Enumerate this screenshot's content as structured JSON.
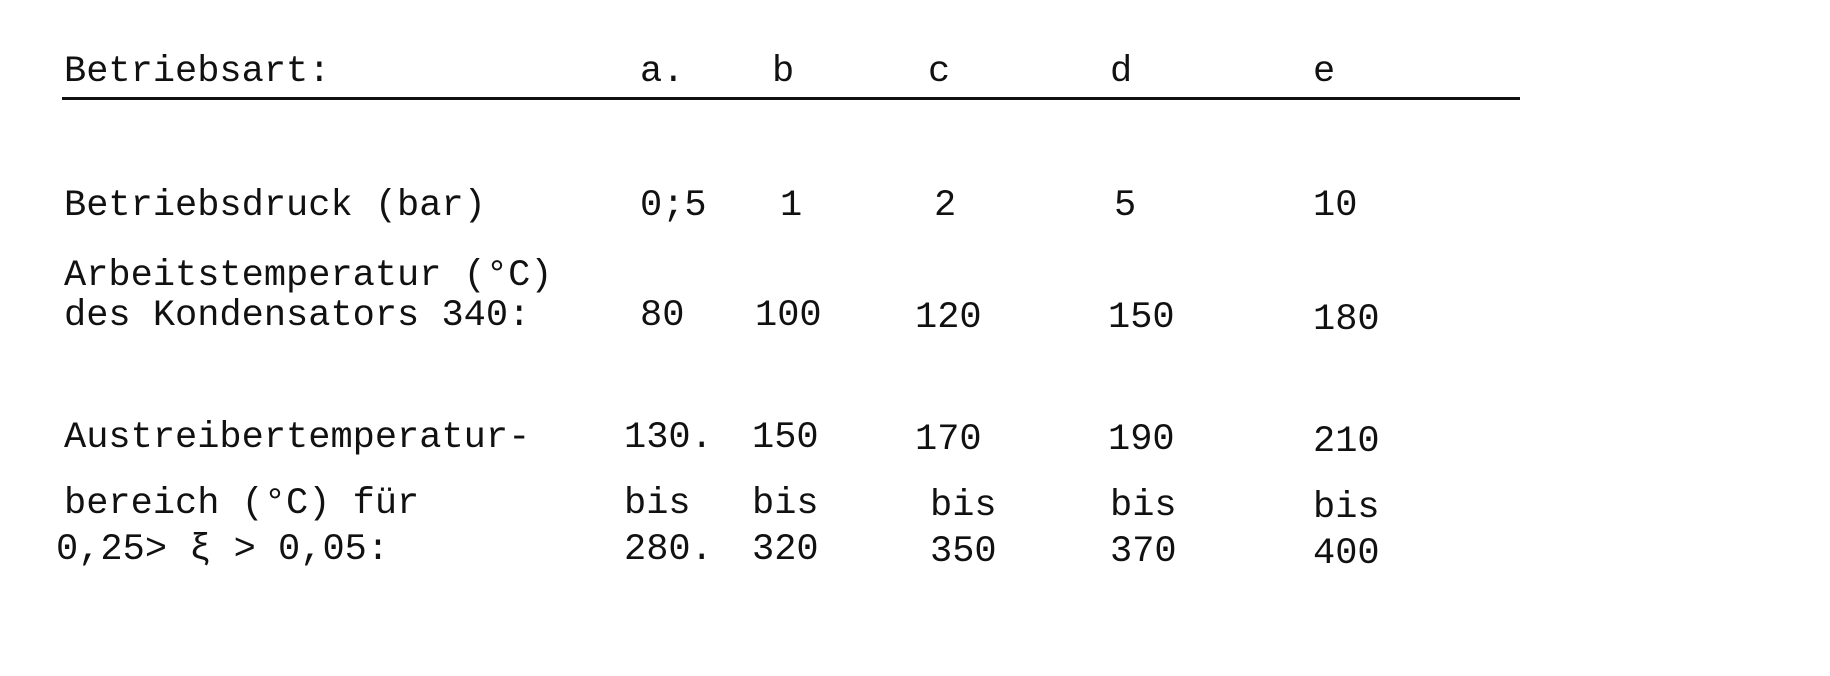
{
  "header": {
    "label": "Betriebsart:",
    "modes": [
      "a.",
      "b",
      "c",
      "d",
      "e"
    ]
  },
  "rows": {
    "pressure": {
      "label": "Betriebsdruck (bar)",
      "values": [
        "0;5",
        "1",
        "2",
        "5",
        "10"
      ]
    },
    "condenser": {
      "label1": "Arbeitstemperatur (°C)",
      "label2": "des Kondensators 340:",
      "values": [
        "80",
        "100",
        "120",
        "150",
        "180"
      ]
    },
    "expeller": {
      "label1": "Austreibertemperatur-",
      "label2": "bereich (°C) für",
      "label3": "0,25> ξ > 0,05:",
      "from": [
        "130.",
        "150",
        "170",
        "190",
        "210"
      ],
      "sep": [
        "bis",
        "bis",
        "bis",
        "bis",
        "bis"
      ],
      "to": [
        "280.",
        "320",
        "350",
        "370",
        "400"
      ]
    }
  }
}
